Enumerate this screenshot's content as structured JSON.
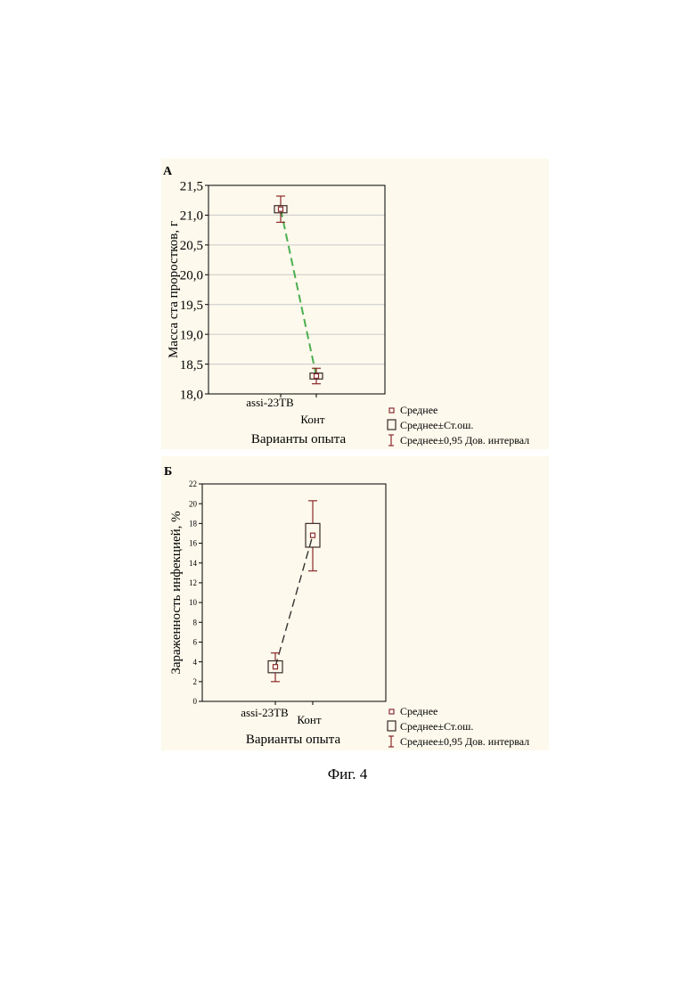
{
  "caption": "Фиг. 4",
  "chart_data": [
    {
      "type": "line",
      "panel_label": "А",
      "xlabel": "Варианты опыта",
      "ylabel": "Масса ста проростков, г",
      "ylim": [
        18.0,
        21.5
      ],
      "yticks": [
        "18,0",
        "18,5",
        "19,0",
        "19,5",
        "20,0",
        "20,5",
        "21,0",
        "21,5"
      ],
      "grid": "horizontal",
      "line_color": "#4caf50",
      "marker_color": "#8b2a2a",
      "categories": [
        "assi-23TB",
        "Конт"
      ],
      "series": [
        {
          "mean": [
            21.1,
            18.3
          ],
          "se_low": [
            21.04,
            18.25
          ],
          "se_high": [
            21.16,
            18.35
          ],
          "ci_low": [
            20.88,
            18.17
          ],
          "ci_high": [
            21.32,
            18.43
          ]
        }
      ],
      "legend": {
        "position": "bottom-right",
        "entries": [
          "Среднее",
          "Среднее±Ст.ош.",
          "Среднее±0,95 Дов. интервал"
        ]
      }
    },
    {
      "type": "line",
      "panel_label": "Б",
      "xlabel": "Варианты опыта",
      "ylabel": "Зараженность инфекцией, %",
      "ylim": [
        0,
        22
      ],
      "yticks": [
        "0",
        "2",
        "4",
        "6",
        "8",
        "10",
        "12",
        "14",
        "16",
        "18",
        "20",
        "22"
      ],
      "grid": "none",
      "line_color": "#333333",
      "marker_color": "#8b2a2a",
      "categories": [
        "assi-23TB",
        "Конт"
      ],
      "series": [
        {
          "mean": [
            3.5,
            16.8
          ],
          "se_low": [
            2.9,
            15.6
          ],
          "se_high": [
            4.1,
            18.0
          ],
          "ci_low": [
            2.0,
            13.2
          ],
          "ci_high": [
            4.9,
            20.3
          ]
        }
      ],
      "legend": {
        "position": "bottom-right",
        "entries": [
          "Среднее",
          "Среднее±Ст.ош.",
          "Среднее±0,95 Дов. интервал"
        ]
      }
    }
  ]
}
